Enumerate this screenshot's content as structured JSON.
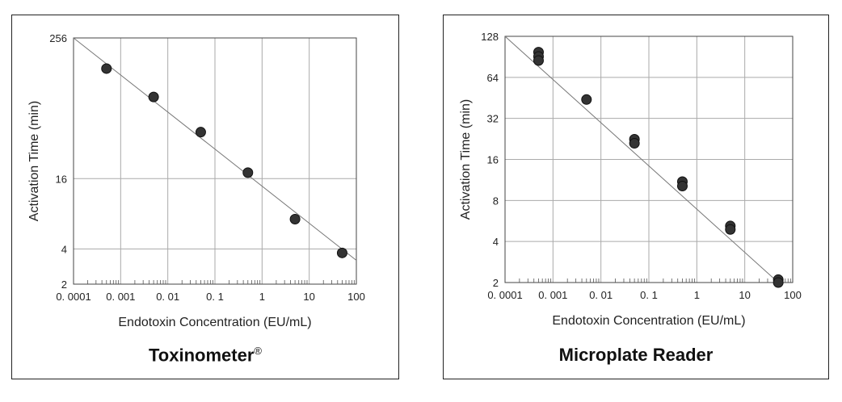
{
  "chart_data": [
    {
      "type": "scatter",
      "caption": "Toxinometer",
      "caption_mark": "®",
      "xlabel": "Endotoxin Concentration (EU/mL)",
      "ylabel": "Activation Time (min)",
      "x_scale": "log",
      "y_scale": "log",
      "xlim": [
        0.0001,
        100
      ],
      "ylim": [
        2,
        256
      ],
      "x_ticks": [
        0.0001,
        0.001,
        0.01,
        0.1,
        1,
        10,
        100
      ],
      "x_tick_labels": [
        "0. 0001",
        "0. 001",
        "0. 01",
        "0. 1",
        "1",
        "10",
        "100"
      ],
      "y_ticks": [
        2,
        4,
        16,
        256
      ],
      "y_tick_labels": [
        "2",
        "4",
        "16",
        "256"
      ],
      "grid": true,
      "points": [
        {
          "x": 0.0005,
          "y": 140
        },
        {
          "x": 0.005,
          "y": 80
        },
        {
          "x": 0.05,
          "y": 40
        },
        {
          "x": 0.5,
          "y": 18
        },
        {
          "x": 5,
          "y": 7.2
        },
        {
          "x": 50,
          "y": 3.7
        }
      ],
      "fit_line": {
        "x": [
          0.0001,
          100
        ],
        "y": [
          256,
          3.2
        ]
      }
    },
    {
      "type": "scatter",
      "caption": "Microplate Reader",
      "xlabel": "Endotoxin Concentration (EU/mL)",
      "ylabel": "Activation Time (min)",
      "x_scale": "log",
      "y_scale": "log",
      "xlim": [
        0.0001,
        100
      ],
      "ylim": [
        2,
        128
      ],
      "x_ticks": [
        0.0001,
        0.001,
        0.01,
        0.1,
        1,
        10,
        100
      ],
      "x_tick_labels": [
        "0. 0001",
        "0. 001",
        "0. 01",
        "0. 1",
        "1",
        "10",
        "100"
      ],
      "y_ticks": [
        2,
        4,
        8,
        16,
        32,
        64,
        128
      ],
      "y_tick_labels": [
        "2",
        "4",
        "8",
        "16",
        "32",
        "64",
        "128"
      ],
      "grid": true,
      "points": [
        {
          "x": 0.0005,
          "y": 98
        },
        {
          "x": 0.0005,
          "y": 91
        },
        {
          "x": 0.0005,
          "y": 85
        },
        {
          "x": 0.005,
          "y": 44
        },
        {
          "x": 0.05,
          "y": 22.5
        },
        {
          "x": 0.05,
          "y": 21
        },
        {
          "x": 0.5,
          "y": 11
        },
        {
          "x": 0.5,
          "y": 10.2
        },
        {
          "x": 5,
          "y": 5.2
        },
        {
          "x": 5,
          "y": 4.9
        },
        {
          "x": 50,
          "y": 2.1
        },
        {
          "x": 50,
          "y": 2.0
        }
      ],
      "fit_line": {
        "x": [
          0.0001,
          50
        ],
        "y": [
          128,
          2.0
        ]
      }
    }
  ]
}
